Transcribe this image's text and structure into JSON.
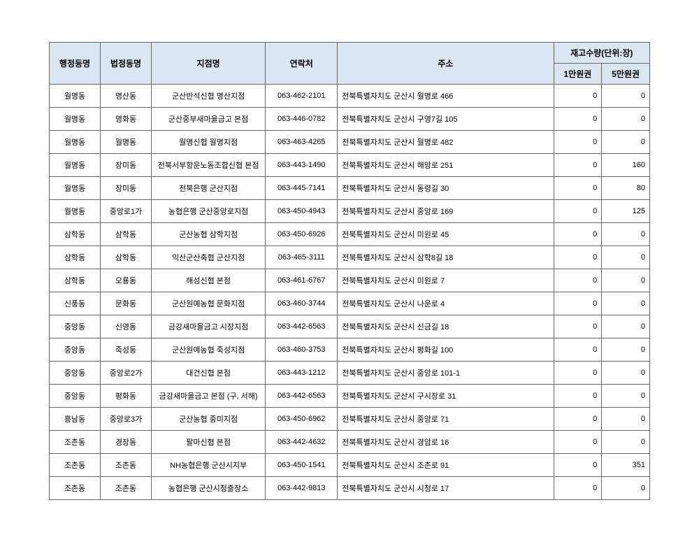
{
  "headers": {
    "admin_dong": "행정동명",
    "legal_dong": "법정동명",
    "branch": "지점명",
    "contact": "연락처",
    "address": "주소",
    "stock_group": "재고수량(단위:장)",
    "stock_1": "1만원권",
    "stock_5": "5만원권"
  },
  "styles": {
    "header_bg": "#dce6f0",
    "border_color": "#666666",
    "font_family": "Malgun Gothic",
    "header_fontsize": 12,
    "cell_fontsize": 11
  },
  "rows": [
    {
      "admin": "월명동",
      "legal": "명산동",
      "branch": "군산반석신협 명산지점",
      "contact": "063-462-2101",
      "address": "전북특별자치도 군산시 월명로 466",
      "s1": "0",
      "s5": "0"
    },
    {
      "admin": "월명동",
      "legal": "영화동",
      "branch": "군산중부새마을금고 본점",
      "contact": "063-446-0782",
      "address": "전북특별자치도 군산시 구영7길 105",
      "s1": "0",
      "s5": "0"
    },
    {
      "admin": "월명동",
      "legal": "월명동",
      "branch": "월명신협 월명지점",
      "contact": "063-463-4265",
      "address": "전북특별자치도 군산시 월명로 482",
      "s1": "0",
      "s5": "0"
    },
    {
      "admin": "월명동",
      "legal": "장미동",
      "branch": "전북서부항운노동조합신협 본점",
      "contact": "063-443-1490",
      "address": "전북특별자치도 군산시 해망로 251",
      "s1": "0",
      "s5": "160"
    },
    {
      "admin": "월명동",
      "legal": "장미동",
      "branch": "전북은행 군산지점",
      "contact": "063-445-7141",
      "address": "전북특별자치도 군산시 동령길 30",
      "s1": "0",
      "s5": "80"
    },
    {
      "admin": "월명동",
      "legal": "중앙로1가",
      "branch": "농협은행 군산중앙로지점",
      "contact": "063-450-4943",
      "address": "전북특별자치도 군산시 중앙로 169",
      "s1": "0",
      "s5": "125"
    },
    {
      "admin": "삼학동",
      "legal": "삼학동",
      "branch": "군산농협 삼학지점",
      "contact": "063-450-6926",
      "address": "전북특별자치도 군산시 미원로 45",
      "s1": "0",
      "s5": "0"
    },
    {
      "admin": "삼학동",
      "legal": "삼학동",
      "branch": "익산군산축협 군산지점",
      "contact": "063-465-3111",
      "address": "전북특별자치도 군산시 삼학8길 18",
      "s1": "0",
      "s5": "0"
    },
    {
      "admin": "삼학동",
      "legal": "오룡동",
      "branch": "해성신협 본점",
      "contact": "063-461-6767",
      "address": "전북특별자치도 군산시 미원로 7",
      "s1": "0",
      "s5": "0"
    },
    {
      "admin": "신풍동",
      "legal": "문화동",
      "branch": "군산원예농협 문화지점",
      "contact": "063-460-3744",
      "address": "전북특별자치도 군산시 나운로 4",
      "s1": "0",
      "s5": "0"
    },
    {
      "admin": "중앙동",
      "legal": "신영동",
      "branch": "금강새마을금고 시장지점",
      "contact": "063-442-6563",
      "address": "전북특별자치도 군산시 신금길 18",
      "s1": "0",
      "s5": "0"
    },
    {
      "admin": "중앙동",
      "legal": "죽성동",
      "branch": "군산원예농협 죽성지점",
      "contact": "063-460-3753",
      "address": "전북특별자치도 군산시 평화길 100",
      "s1": "0",
      "s5": "0"
    },
    {
      "admin": "중앙동",
      "legal": "중앙로2가",
      "branch": "대건신협 본점",
      "contact": "063-443-1212",
      "address": "전북특별자치도 군산시 중앙로 101-1",
      "s1": "0",
      "s5": "0"
    },
    {
      "admin": "중앙동",
      "legal": "평화동",
      "branch": "금강새마을금고 본점 (구, 서해)",
      "contact": "063-442-6563",
      "address": "전북특별자치도 군산시 구시장로 31",
      "s1": "0",
      "s5": "0"
    },
    {
      "admin": "흥남동",
      "legal": "중앙로3가",
      "branch": "군산농협 중미지점",
      "contact": "063-450-6962",
      "address": "전북특별자치도 군산시 중앙로 71",
      "s1": "0",
      "s5": "0"
    },
    {
      "admin": "조촌동",
      "legal": "경장동",
      "branch": "팔마신협 본점",
      "contact": "063-442-4632",
      "address": "전북특별자치도 군산시 경암로 16",
      "s1": "0",
      "s5": "0"
    },
    {
      "admin": "조촌동",
      "legal": "조촌동",
      "branch": "NH농협은행 군산시지부",
      "contact": "063-450-1541",
      "address": "전북특별자치도 군산시 조촌로 91",
      "s1": "0",
      "s5": "351"
    },
    {
      "admin": "조촌동",
      "legal": "조촌동",
      "branch": "농협은행 군산시청출장소",
      "contact": "063-442-9813",
      "address": "전북특별자치도 군산시 시청로 17",
      "s1": "0",
      "s5": "0"
    }
  ]
}
